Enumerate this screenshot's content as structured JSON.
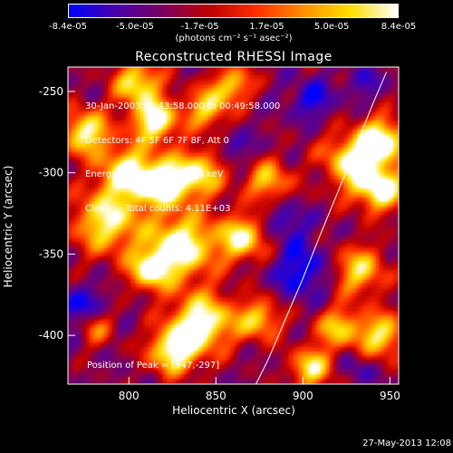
{
  "colorbar": {
    "ticks": [
      "-8.4e-05",
      "-5.0e-05",
      "-1.7e-05",
      "1.7e-05",
      "5.0e-05",
      "8.4e-05"
    ],
    "tick_values": [
      -8.4e-05,
      -5e-05,
      -1.7e-05,
      1.7e-05,
      5e-05,
      8.4e-05
    ],
    "units": "(photons cm⁻² s⁻¹ asec⁻²)",
    "colors": [
      "#0000ff",
      "#4a00a8",
      "#7a0060",
      "#c00000",
      "#ff3000",
      "#ff9000",
      "#ffe000",
      "#ffffff"
    ]
  },
  "chart_data": {
    "type": "heatmap",
    "title": "Reconstructed RHESSI Image",
    "xlabel": "Heliocentric X (arcsec)",
    "ylabel": "Heliocentric Y (arcsec)",
    "xlim": [
      765,
      955
    ],
    "ylim": [
      -430,
      -235
    ],
    "xticks": [
      800,
      850,
      900,
      950
    ],
    "yticks": [
      -250,
      -300,
      -350,
      -400
    ],
    "info_lines": [
      "30-Jan-2003 00:43:58.000 to 00:49:58.000",
      "Detectors: 4F 5F 6F 7F 8F, Att 0",
      "Energy Range: 25.0 - 50.0 keV",
      "Clean     Total counts: 4.11E+03"
    ],
    "peak_label": "Position of Peak = [947,-297]",
    "peak": [
      947,
      -297
    ],
    "limb_points": [
      [
        873,
        -430
      ],
      [
        880,
        -415
      ],
      [
        890,
        -390
      ],
      [
        900,
        -365
      ],
      [
        910,
        -338
      ],
      [
        920,
        -312
      ],
      [
        930,
        -285
      ],
      [
        940,
        -258
      ],
      [
        948,
        -238
      ]
    ],
    "sources": [
      {
        "x": 775,
        "y": -275,
        "s": 10,
        "a": 0.9
      },
      {
        "x": 787,
        "y": -330,
        "s": 14,
        "a": 0.85
      },
      {
        "x": 805,
        "y": -245,
        "s": 10,
        "a": 0.85
      },
      {
        "x": 815,
        "y": -268,
        "s": 9,
        "a": 1.0
      },
      {
        "x": 800,
        "y": -300,
        "s": 12,
        "a": 0.9
      },
      {
        "x": 820,
        "y": -307,
        "s": 10,
        "a": 0.85
      },
      {
        "x": 845,
        "y": -260,
        "s": 9,
        "a": 0.75
      },
      {
        "x": 840,
        "y": -300,
        "s": 11,
        "a": 0.8
      },
      {
        "x": 860,
        "y": -245,
        "s": 8,
        "a": 0.7
      },
      {
        "x": 830,
        "y": -345,
        "s": 14,
        "a": 1.0
      },
      {
        "x": 812,
        "y": -360,
        "s": 9,
        "a": 0.8
      },
      {
        "x": 865,
        "y": -340,
        "s": 10,
        "a": 0.85
      },
      {
        "x": 842,
        "y": -392,
        "s": 13,
        "a": 1.0
      },
      {
        "x": 825,
        "y": -410,
        "s": 10,
        "a": 0.9
      },
      {
        "x": 880,
        "y": -305,
        "s": 9,
        "a": 0.7
      },
      {
        "x": 875,
        "y": -390,
        "s": 9,
        "a": 0.7
      },
      {
        "x": 925,
        "y": -295,
        "s": 12,
        "a": 0.9
      },
      {
        "x": 945,
        "y": -280,
        "s": 10,
        "a": 1.0
      },
      {
        "x": 945,
        "y": -310,
        "s": 10,
        "a": 0.95
      },
      {
        "x": 932,
        "y": -360,
        "s": 11,
        "a": 0.75
      },
      {
        "x": 920,
        "y": -395,
        "s": 9,
        "a": 0.7
      },
      {
        "x": 945,
        "y": -400,
        "s": 10,
        "a": 0.8
      },
      {
        "x": 905,
        "y": -420,
        "s": 9,
        "a": 0.8
      },
      {
        "x": 780,
        "y": -395,
        "s": 8,
        "a": 0.55
      }
    ],
    "sinks": [
      {
        "x": 772,
        "y": -385,
        "s": 10,
        "a": 1.0
      },
      {
        "x": 900,
        "y": -360,
        "s": 12,
        "a": 1.0
      },
      {
        "x": 905,
        "y": -255,
        "s": 8,
        "a": 0.9
      },
      {
        "x": 890,
        "y": -330,
        "s": 8,
        "a": 0.8
      },
      {
        "x": 860,
        "y": -285,
        "s": 7,
        "a": 0.7
      },
      {
        "x": 915,
        "y": -300,
        "s": 8,
        "a": 0.6
      },
      {
        "x": 935,
        "y": -245,
        "s": 7,
        "a": 0.6
      },
      {
        "x": 930,
        "y": -420,
        "s": 7,
        "a": 0.6
      }
    ]
  },
  "footer": {
    "timestamp": "27-May-2013 12:08"
  }
}
